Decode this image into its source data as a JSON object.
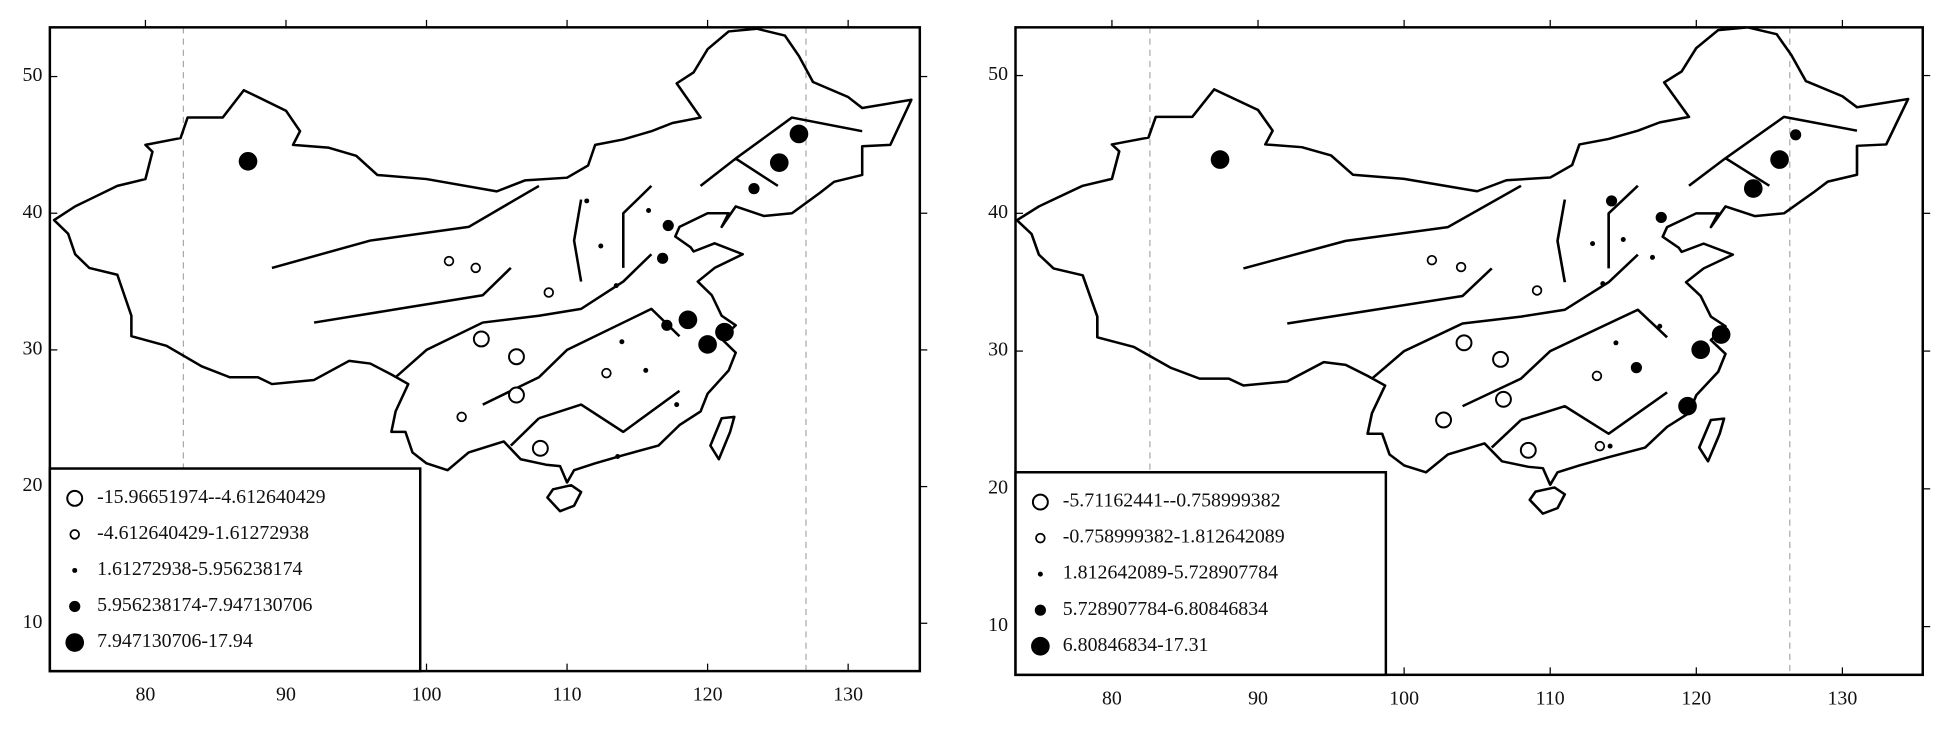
{
  "chart_data": [
    {
      "type": "scatter",
      "xlim": [
        73.2,
        135.1
      ],
      "ylim": [
        6.5,
        53.6
      ],
      "xticks": [
        80,
        90,
        100,
        110,
        120,
        130
      ],
      "yticks": [
        10,
        20,
        30,
        40,
        50
      ],
      "vlines": [
        82.7,
        127
      ],
      "legend": "lower left",
      "series": [
        {
          "name": "-15.96651974--4.612640429",
          "marker": "open-large",
          "color": "#000000",
          "x": [
            103.9,
            106.4,
            106.4,
            108.1
          ],
          "y": [
            30.8,
            29.5,
            26.7,
            22.8
          ]
        },
        {
          "name": "-4.612640429-1.61272938",
          "marker": "open-small",
          "color": "#000000",
          "x": [
            101.6,
            103.5,
            108.7,
            112.8,
            102.5
          ],
          "y": [
            36.5,
            36,
            34.2,
            28.3,
            25.1
          ]
        },
        {
          "name": "1.61272938-5.956238174",
          "marker": "dot",
          "color": "#000000",
          "x": [
            111.4,
            112.4,
            113.5,
            115.8,
            115.6,
            113.9,
            113.6,
            117.8
          ],
          "y": [
            40.9,
            37.6,
            34.7,
            40.2,
            28.5,
            30.6,
            22.2,
            26
          ]
        },
        {
          "name": "5.956238174-7.947130706",
          "marker": "filled-small",
          "color": "#000000",
          "x": [
            123.3,
            116.8,
            117.1,
            117.2
          ],
          "y": [
            41.8,
            36.7,
            31.8,
            39.1
          ]
        },
        {
          "name": "7.947130706-17.94",
          "marker": "filled-large",
          "color": "#000000",
          "x": [
            87.3,
            126.5,
            125.1,
            118.6,
            120,
            121.2
          ],
          "y": [
            43.8,
            45.8,
            43.7,
            32.2,
            30.4,
            31.3
          ]
        }
      ]
    },
    {
      "type": "scatter",
      "xlim": [
        73.4,
        135.5
      ],
      "ylim": [
        6.5,
        53.5
      ],
      "xticks": [
        80,
        90,
        100,
        110,
        120,
        130
      ],
      "yticks": [
        10,
        20,
        30,
        40,
        50
      ],
      "vlines": [
        82.6,
        126.4
      ],
      "legend": "lower left",
      "series": [
        {
          "name": "-5.71162441--0.758999382",
          "marker": "open-large",
          "color": "#000000",
          "x": [
            102.7,
            104.1,
            106.6,
            106.8,
            108.5
          ],
          "y": [
            25,
            30.6,
            29.4,
            26.5,
            22.8
          ]
        },
        {
          "name": "-0.758999382-1.812642089",
          "marker": "open-small",
          "color": "#000000",
          "x": [
            101.9,
            103.9,
            109.1,
            113.2,
            113.4
          ],
          "y": [
            36.6,
            36.1,
            34.4,
            28.2,
            23.1
          ]
        },
        {
          "name": "1.812642089-5.728907784",
          "marker": "dot",
          "color": "#000000",
          "x": [
            112.9,
            115,
            117,
            113.6,
            114.5,
            117.5,
            114.1
          ],
          "y": [
            37.8,
            38.1,
            36.8,
            34.9,
            30.6,
            31.8,
            23.1
          ]
        },
        {
          "name": "5.728907784-6.80846834",
          "marker": "filled-small",
          "color": "#000000",
          "x": [
            126.8,
            114.2,
            115.9,
            117.6
          ],
          "y": [
            45.7,
            40.9,
            28.8,
            39.7
          ]
        },
        {
          "name": "6.80846834-17.31",
          "marker": "filled-large",
          "color": "#000000",
          "x": [
            87.4,
            125.7,
            123.9,
            121.7,
            120.3,
            119.4
          ],
          "y": [
            43.9,
            43.9,
            41.8,
            31.2,
            30.1,
            26
          ]
        }
      ]
    }
  ]
}
